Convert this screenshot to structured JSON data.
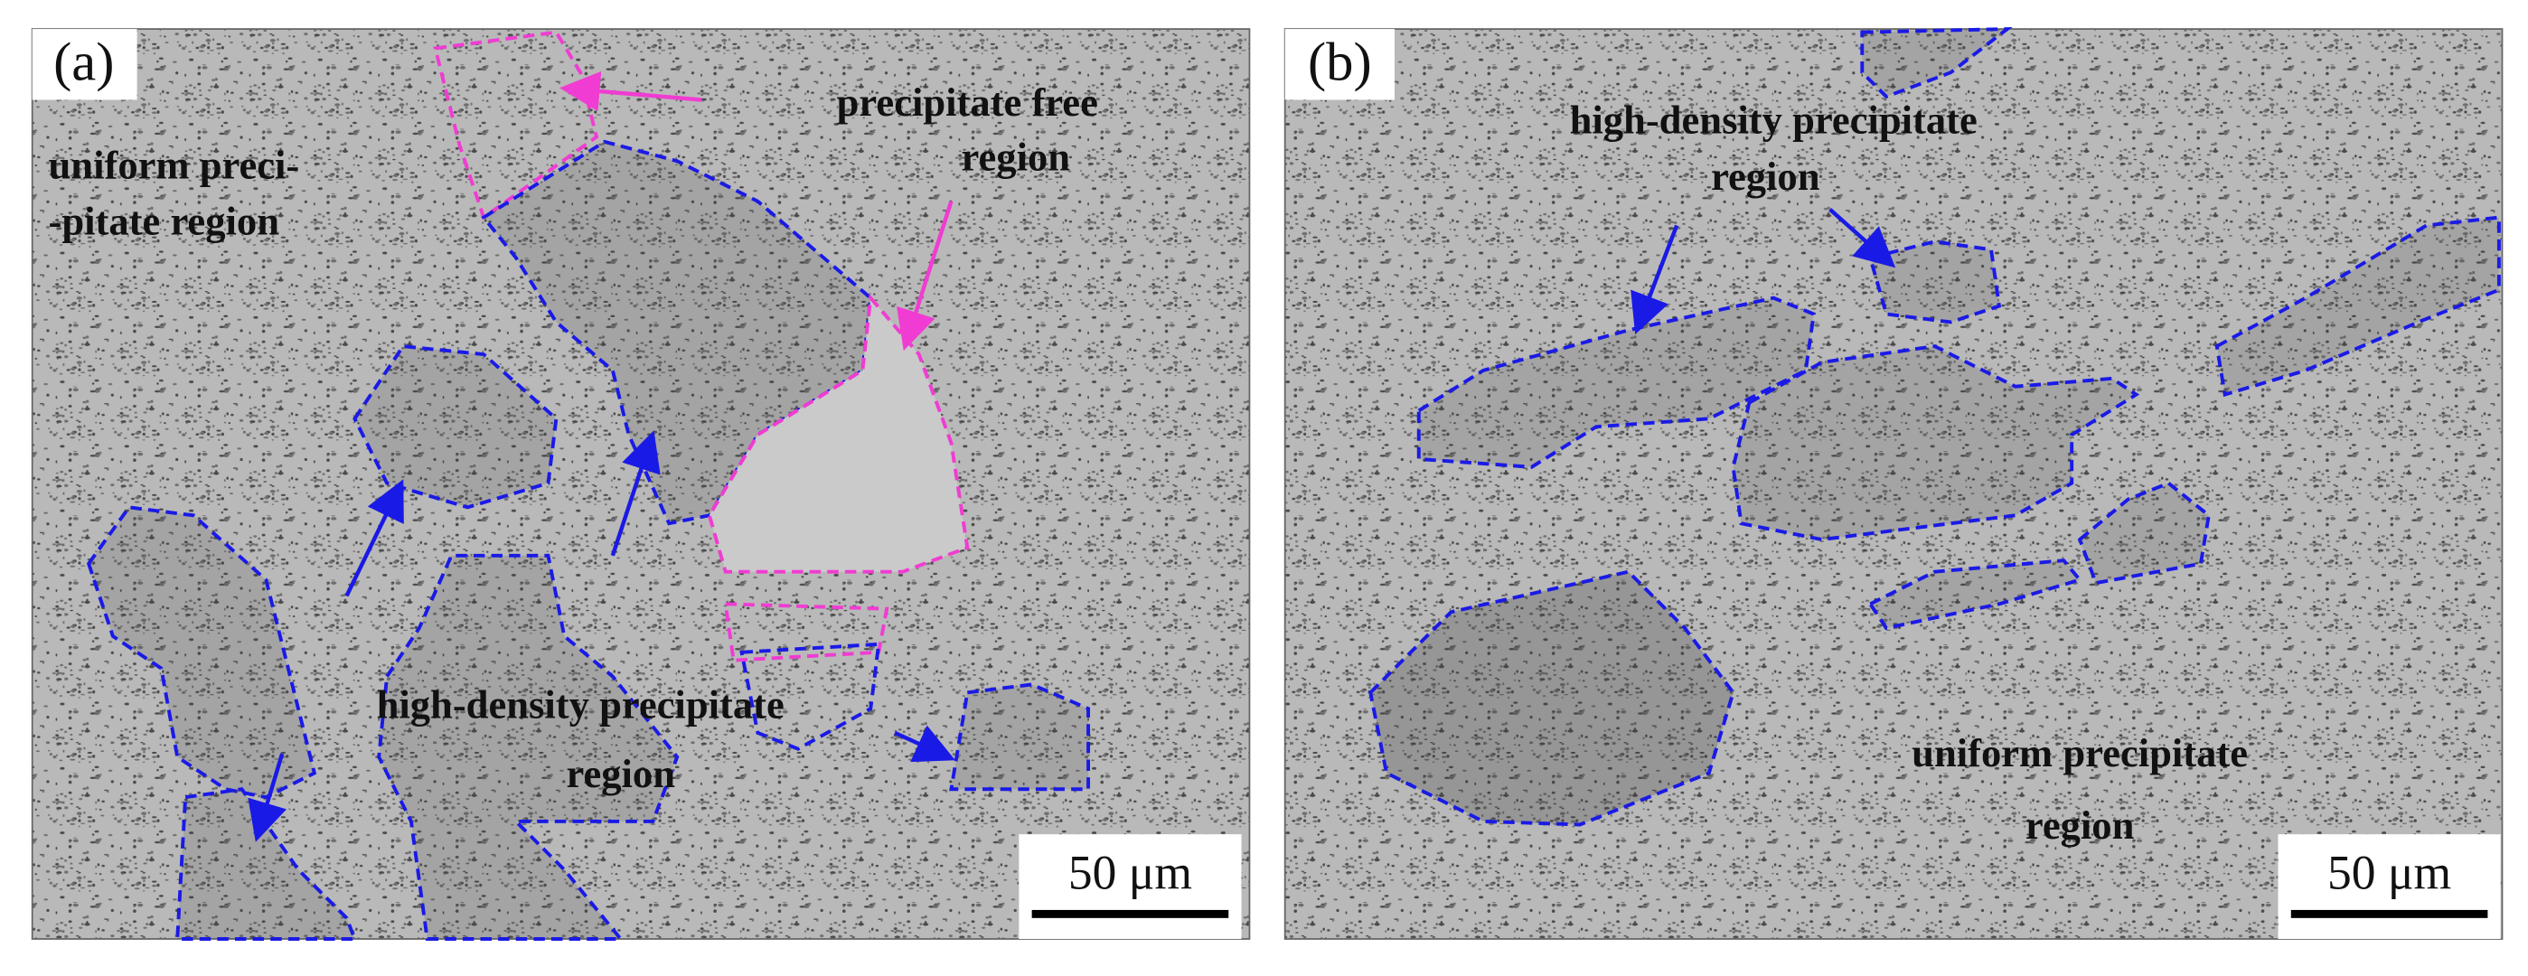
{
  "panels": [
    {
      "label": "(a)",
      "annotations": [
        "uniform preci-",
        "-pitate region",
        "precipitate free",
        "region",
        "high-density precipitate",
        "region"
      ],
      "scale_bar": "50 μm"
    },
    {
      "label": "(b)",
      "annotations": [
        "high-density precipitate",
        "region",
        "uniform precipitate",
        "region"
      ],
      "scale_bar": "50 μm"
    }
  ]
}
